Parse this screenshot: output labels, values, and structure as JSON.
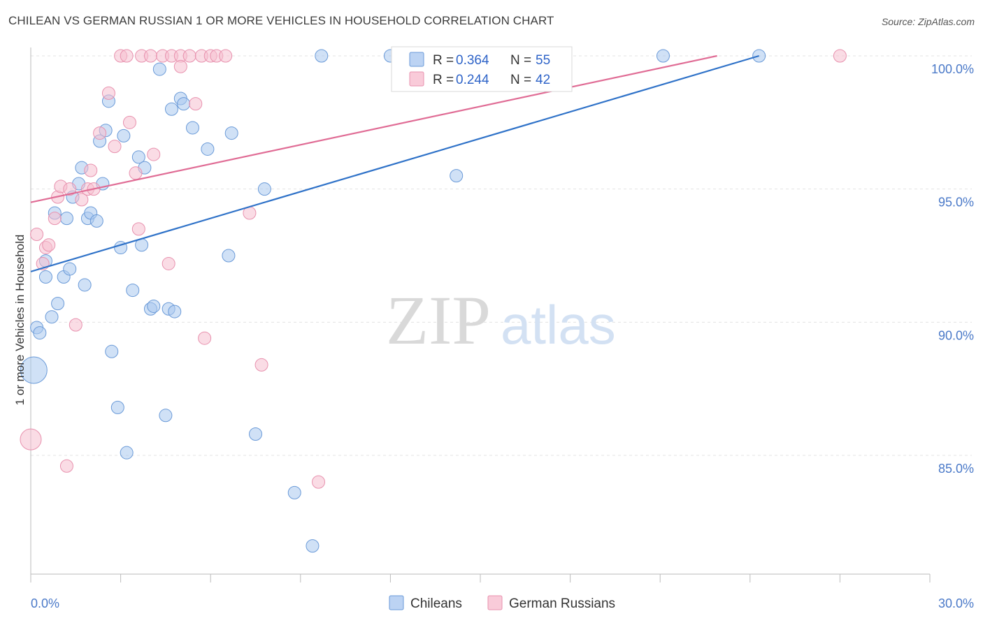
{
  "header": {
    "title": "CHILEAN VS GERMAN RUSSIAN 1 OR MORE VEHICLES IN HOUSEHOLD CORRELATION CHART",
    "source": "Source: ZipAtlas.com"
  },
  "watermark": {
    "zip": "ZIP",
    "atlas": "atlas"
  },
  "chart_data": {
    "type": "scatter",
    "title": "CHILEAN VS GERMAN RUSSIAN 1 OR MORE VEHICLES IN HOUSEHOLD CORRELATION CHART",
    "xlabel": "",
    "ylabel": "1 or more Vehicles in Household",
    "xlim": [
      0,
      30
    ],
    "ylim": [
      80.5,
      100.5
    ],
    "x_tick_labels": [
      "0.0%",
      "30.0%"
    ],
    "y_ticks": [
      85,
      90,
      95,
      100
    ],
    "y_tick_labels": [
      "85.0%",
      "90.0%",
      "95.0%",
      "100.0%"
    ],
    "grid": "horizontal dashed",
    "legend_placement": "top-center",
    "series": [
      {
        "name": "Chileans",
        "color": "#a9c8ef",
        "stroke": "#6a9ad8",
        "line_color": "#2f72c8",
        "R": "0.364",
        "N": "55",
        "trend": {
          "x": [
            0,
            24.3
          ],
          "y": [
            91.9,
            100
          ]
        },
        "points": [
          [
            0.1,
            88.2,
            3
          ],
          [
            0.2,
            89.8,
            1
          ],
          [
            0.3,
            89.6,
            1
          ],
          [
            0.5,
            92.3,
            1
          ],
          [
            0.5,
            91.7,
            1
          ],
          [
            0.7,
            90.2,
            1
          ],
          [
            0.8,
            94.1,
            1
          ],
          [
            0.9,
            90.7,
            1
          ],
          [
            1.1,
            91.7,
            1
          ],
          [
            1.2,
            93.9,
            1
          ],
          [
            1.3,
            92.0,
            1
          ],
          [
            1.4,
            94.7,
            1
          ],
          [
            1.6,
            95.2,
            1
          ],
          [
            1.7,
            95.8,
            1
          ],
          [
            1.8,
            91.4,
            1
          ],
          [
            1.9,
            93.9,
            1
          ],
          [
            2.0,
            94.1,
            1
          ],
          [
            2.2,
            93.8,
            1
          ],
          [
            2.3,
            96.8,
            1
          ],
          [
            2.4,
            95.2,
            1
          ],
          [
            2.5,
            97.2,
            1
          ],
          [
            2.6,
            98.3,
            1
          ],
          [
            2.7,
            88.9,
            1
          ],
          [
            2.9,
            86.8,
            1
          ],
          [
            3.0,
            92.8,
            1
          ],
          [
            3.1,
            97.0,
            1
          ],
          [
            3.2,
            85.1,
            1
          ],
          [
            3.4,
            91.2,
            1
          ],
          [
            3.6,
            96.2,
            1
          ],
          [
            3.7,
            92.9,
            1
          ],
          [
            3.8,
            95.8,
            1
          ],
          [
            4.0,
            90.5,
            1
          ],
          [
            4.1,
            90.6,
            1
          ],
          [
            4.3,
            99.5,
            1
          ],
          [
            4.5,
            86.5,
            1
          ],
          [
            4.6,
            90.5,
            1
          ],
          [
            4.7,
            98.0,
            1
          ],
          [
            4.8,
            90.4,
            1
          ],
          [
            5.0,
            98.4,
            1
          ],
          [
            5.1,
            98.2,
            1
          ],
          [
            5.4,
            97.3,
            1
          ],
          [
            5.9,
            96.5,
            1
          ],
          [
            6.6,
            92.5,
            1
          ],
          [
            6.7,
            97.1,
            1
          ],
          [
            7.5,
            85.8,
            1
          ],
          [
            7.8,
            95.0,
            1
          ],
          [
            8.8,
            83.6,
            1
          ],
          [
            9.4,
            81.6,
            1
          ],
          [
            9.7,
            100.0,
            1
          ],
          [
            12.3,
            100.0,
            1
          ],
          [
            14.0,
            100.0,
            1
          ],
          [
            14.2,
            95.5,
            1
          ],
          [
            21.1,
            100.0,
            1
          ],
          [
            24.3,
            100.0,
            1
          ],
          [
            12.0,
            100.0,
            1
          ]
        ]
      },
      {
        "name": "German Russians",
        "color": "#f6bfd0",
        "stroke": "#e891ae",
        "line_color": "#e06c95",
        "R": "0.244",
        "N": "42",
        "trend": {
          "x": [
            0,
            22.9
          ],
          "y": [
            94.5,
            100
          ]
        },
        "points": [
          [
            0.0,
            85.6,
            2
          ],
          [
            0.2,
            93.3,
            1
          ],
          [
            0.4,
            92.2,
            1
          ],
          [
            0.5,
            92.8,
            1
          ],
          [
            0.6,
            92.9,
            1
          ],
          [
            0.8,
            93.9,
            1
          ],
          [
            0.9,
            94.7,
            1
          ],
          [
            1.0,
            95.1,
            1
          ],
          [
            1.2,
            84.6,
            1
          ],
          [
            1.3,
            95.0,
            1
          ],
          [
            1.5,
            89.9,
            1
          ],
          [
            1.7,
            94.6,
            1
          ],
          [
            1.9,
            95.0,
            1
          ],
          [
            2.0,
            95.7,
            1
          ],
          [
            2.1,
            95.0,
            1
          ],
          [
            2.3,
            97.1,
            1
          ],
          [
            2.6,
            98.6,
            1
          ],
          [
            2.8,
            96.6,
            1
          ],
          [
            3.0,
            100.0,
            1
          ],
          [
            3.2,
            100.0,
            1
          ],
          [
            3.3,
            97.5,
            1
          ],
          [
            3.5,
            95.6,
            1
          ],
          [
            3.6,
            93.5,
            1
          ],
          [
            3.7,
            100.0,
            1
          ],
          [
            4.0,
            100.0,
            1
          ],
          [
            4.1,
            96.3,
            1
          ],
          [
            4.4,
            100.0,
            1
          ],
          [
            4.6,
            92.2,
            1
          ],
          [
            4.7,
            100.0,
            1
          ],
          [
            5.0,
            100.0,
            1
          ],
          [
            5.0,
            99.6,
            1
          ],
          [
            5.3,
            100.0,
            1
          ],
          [
            5.5,
            98.2,
            1
          ],
          [
            5.7,
            100.0,
            1
          ],
          [
            5.8,
            89.4,
            1
          ],
          [
            6.0,
            100.0,
            1
          ],
          [
            6.2,
            100.0,
            1
          ],
          [
            6.5,
            100.0,
            1
          ],
          [
            7.3,
            94.1,
            1
          ],
          [
            7.7,
            88.4,
            1
          ],
          [
            9.6,
            84.0,
            1
          ],
          [
            27.0,
            100.0,
            1
          ]
        ]
      }
    ]
  }
}
